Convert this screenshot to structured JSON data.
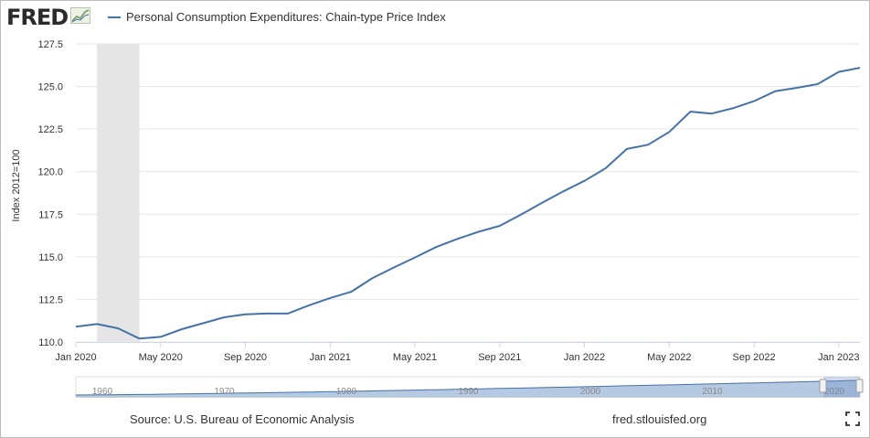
{
  "logo": {
    "text": "FRED",
    "icon": "fred-graph-icon"
  },
  "colors": {
    "series": "#4572a7",
    "recession": "#e5e5e5",
    "grid": "#e6e6e6",
    "navigator_fill": "#a8bfdd",
    "navigator_line": "#4572a7"
  },
  "chart_data": {
    "type": "line",
    "title": "",
    "ylabel": "Index 2012=100",
    "xlabel": "",
    "ylim": [
      110,
      127.5
    ],
    "y_ticks": [
      "110.0",
      "112.5",
      "115.0",
      "117.5",
      "120.0",
      "122.5",
      "125.0",
      "127.5"
    ],
    "x_ticks": [
      "Jan 2020",
      "May 2020",
      "Sep 2020",
      "Jan 2021",
      "May 2021",
      "Sep 2021",
      "Jan 2022",
      "May 2022",
      "Sep 2022",
      "Jan 2023"
    ],
    "recession": {
      "start": "Feb 2020",
      "end": "Apr 2020"
    },
    "grid": true,
    "legend_position": "top-left",
    "series": [
      {
        "name": "Personal Consumption Expenditures: Chain-type Price Index",
        "x": [
          "2020-01",
          "2020-02",
          "2020-03",
          "2020-04",
          "2020-05",
          "2020-06",
          "2020-07",
          "2020-08",
          "2020-09",
          "2020-10",
          "2020-11",
          "2020-12",
          "2021-01",
          "2021-02",
          "2021-03",
          "2021-04",
          "2021-05",
          "2021-06",
          "2021-07",
          "2021-08",
          "2021-09",
          "2021-10",
          "2021-11",
          "2021-12",
          "2022-01",
          "2022-02",
          "2022-03",
          "2022-04",
          "2022-05",
          "2022-06",
          "2022-07",
          "2022-08",
          "2022-09",
          "2022-10",
          "2022-11",
          "2022-12",
          "2023-01",
          "2023-02"
        ],
        "values": [
          110.9,
          111.05,
          110.8,
          110.2,
          110.3,
          110.75,
          111.1,
          111.45,
          111.62,
          111.67,
          111.67,
          112.15,
          112.58,
          112.95,
          113.75,
          114.37,
          114.96,
          115.57,
          116.05,
          116.47,
          116.82,
          117.47,
          118.17,
          118.84,
          119.46,
          120.2,
          121.33,
          121.58,
          122.33,
          123.52,
          123.41,
          123.72,
          124.14,
          124.72,
          124.92,
          125.14,
          125.86,
          126.1
        ]
      }
    ]
  },
  "navigator": {
    "labels": [
      "1960",
      "1970",
      "1980",
      "1990",
      "2000",
      "2010",
      "2020"
    ]
  },
  "footer": {
    "source": "Source: U.S. Bureau of Economic Analysis",
    "site": "fred.stlouisfed.org"
  }
}
